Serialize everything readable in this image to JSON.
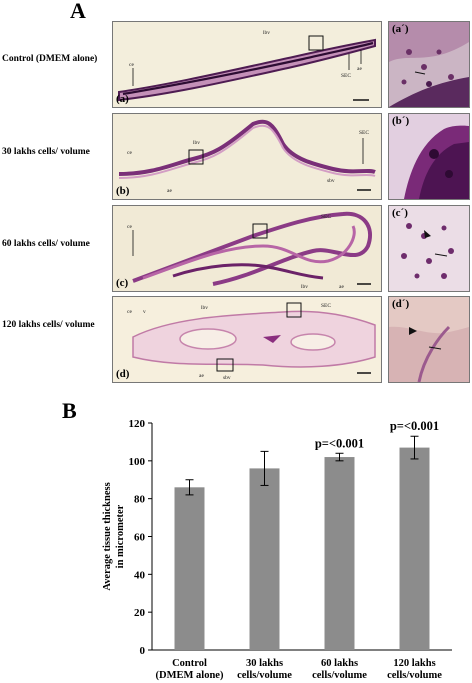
{
  "panel_a": {
    "letter": "A",
    "rows": [
      {
        "label": "Control (DMEM alone)",
        "main_tag": "(a)",
        "zoom_tag": "(a´)"
      },
      {
        "label": "30 lakhs cells/ volume",
        "main_tag": "(b)",
        "zoom_tag": "(b´)"
      },
      {
        "label": "60 lakhs cells/ volume",
        "main_tag": "(c)",
        "zoom_tag": "(c´)"
      },
      {
        "label": "120 lakhs cells/ volume",
        "main_tag": "(d)",
        "zoom_tag": "(d´)"
      }
    ],
    "annotations": {
      "ce": "ce",
      "ae": "ae",
      "sec": "SEC",
      "lbv": "lbv",
      "sbv": "sbv",
      "v": "v"
    },
    "colors": {
      "stain_dark": "#5a1f5e",
      "stain_mid": "#9c3f8e",
      "stain_light": "#d7a3c8",
      "background": "#f1ebd6"
    }
  },
  "panel_b": {
    "letter": "B",
    "chart_data": {
      "type": "bar",
      "categories": [
        [
          "Control",
          "(DMEM alone)"
        ],
        [
          "30 lakhs",
          "cells/volume"
        ],
        [
          "60 lakhs",
          "cells/volume"
        ],
        [
          "120 lakhs",
          "cells/volume"
        ]
      ],
      "values": [
        86,
        96,
        102,
        107
      ],
      "errors": [
        4,
        9,
        2,
        6
      ],
      "annotations": [
        "",
        "",
        "p=<0.001",
        "p=<0.001"
      ],
      "ylabel_lines": [
        "Average tissue thickness",
        "in micrometer"
      ],
      "yticks": [
        0,
        20,
        40,
        60,
        80,
        100,
        120
      ],
      "ylim": [
        0,
        120
      ],
      "bar_color": "#8c8c8c",
      "grid": false
    }
  }
}
